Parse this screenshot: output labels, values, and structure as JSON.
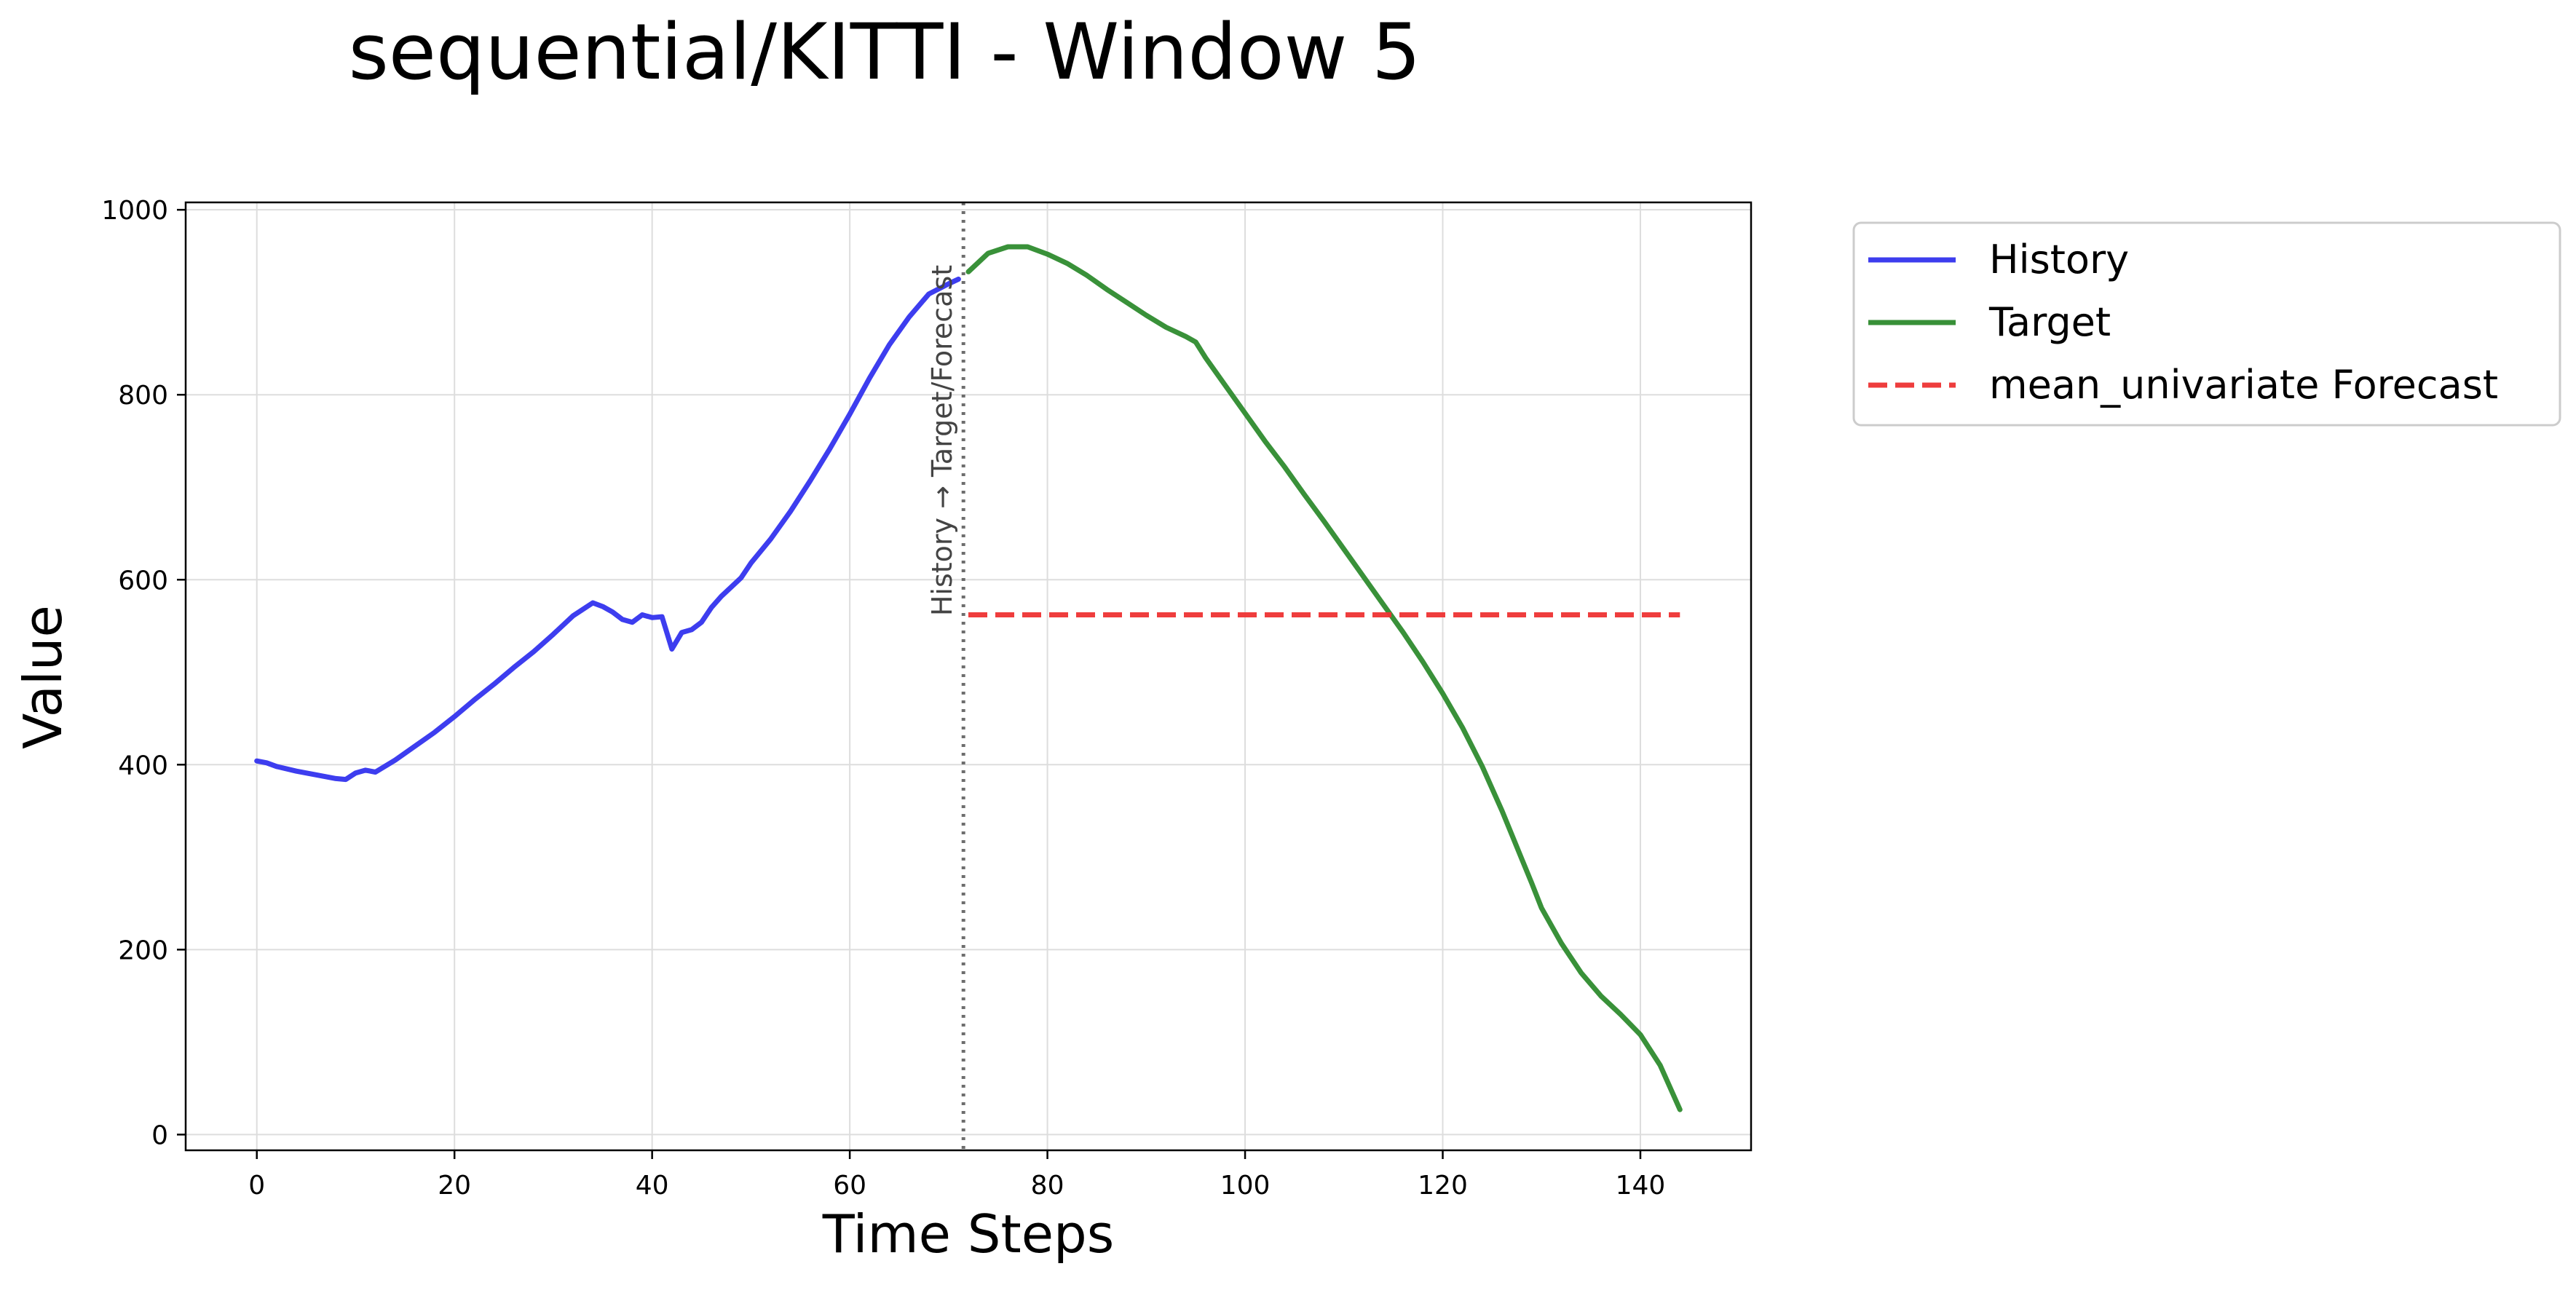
{
  "chart_data": {
    "type": "line",
    "title": "sequential/KITTI - Window 5",
    "xlabel": "Time Steps",
    "ylabel": "Value",
    "xlim": [
      -7.2,
      151.2
    ],
    "ylim": [
      -17,
      1008
    ],
    "xticks": [
      0,
      20,
      40,
      60,
      80,
      100,
      120,
      140
    ],
    "yticks": [
      0,
      200,
      400,
      600,
      800,
      1000
    ],
    "grid": true,
    "legend_position": "outside-right-top",
    "divider": {
      "x": 71.5,
      "label": "History → Target/Forecast"
    },
    "series": [
      {
        "name": "History",
        "color": "#3333ee",
        "style": "solid",
        "x": [
          0,
          1,
          2,
          4,
          6,
          8,
          9,
          10,
          11,
          12,
          14,
          16,
          18,
          20,
          22,
          24,
          26,
          28,
          30,
          32,
          34,
          35,
          36,
          37,
          38,
          39,
          40,
          41,
          42,
          43,
          44,
          45,
          46,
          47,
          48,
          49,
          50,
          52,
          54,
          56,
          58,
          60,
          62,
          64,
          66,
          68,
          70,
          71
        ],
        "y": [
          404,
          402,
          398,
          393,
          389,
          385,
          384,
          391,
          394,
          392,
          405,
          420,
          435,
          452,
          470,
          487,
          505,
          522,
          541,
          561,
          575,
          571,
          565,
          557,
          554,
          562,
          559,
          560,
          525,
          543,
          546,
          554,
          570,
          582,
          592,
          602,
          618,
          644,
          674,
          707,
          742,
          779,
          818,
          854,
          884,
          909,
          920,
          925
        ]
      },
      {
        "name": "Target",
        "color": "#2e8b2e",
        "style": "solid",
        "x": [
          72,
          74,
          76,
          78,
          80,
          82,
          84,
          86,
          88,
          90,
          92,
          94,
          95,
          96,
          98,
          100,
          102,
          104,
          106,
          108,
          110,
          112,
          114,
          116,
          118,
          120,
          122,
          124,
          126,
          128,
          129,
          130,
          132,
          134,
          136,
          138,
          140,
          142,
          144
        ],
        "y": [
          933,
          953,
          960,
          960,
          952,
          942,
          929,
          914,
          900,
          886,
          873,
          863,
          857,
          840,
          810,
          780,
          750,
          722,
          692,
          663,
          633,
          603,
          573,
          543,
          511,
          477,
          440,
          398,
          350,
          298,
          272,
          245,
          207,
          175,
          150,
          130,
          108,
          75,
          27
        ]
      },
      {
        "name": "mean_univariate Forecast",
        "color": "#ee3333",
        "style": "dashed",
        "x": [
          72,
          144
        ],
        "y": [
          562,
          562
        ]
      }
    ]
  }
}
